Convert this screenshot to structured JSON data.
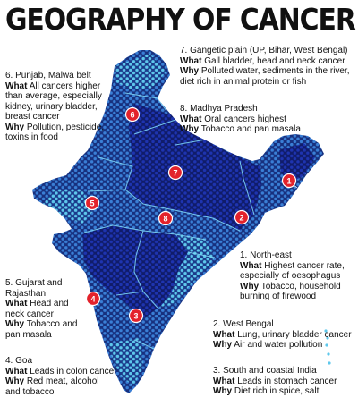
{
  "title": "GEOGRAPHY OF CANCER",
  "colors": {
    "light": "#5ec8ec",
    "mid": "#3a7fd6",
    "dark": "#1b2fa8",
    "marker": "#e3222b",
    "background": "#ffffff"
  },
  "markers": [
    "1",
    "2",
    "3",
    "4",
    "5",
    "6",
    "7",
    "8"
  ],
  "regions": {
    "r1": {
      "label": "1. North-east",
      "what_label": "What",
      "what": "Highest cancer rate, especially of oesophagus",
      "what_lines": [
        "Highest cancer rate,",
        "especially of oesophagus"
      ],
      "why_label": "Why",
      "why": "Tobacco, household burning of firewood",
      "why_lines": [
        "Tobacco, household",
        "burning of firewood"
      ]
    },
    "r2": {
      "label": "2. West Bengal",
      "what_label": "What",
      "what": "Lung, urinary bladder cancer",
      "what_lines": [
        "Lung, urinary bladder cancer"
      ],
      "why_label": "Why",
      "why": "Air and water pollution",
      "why_lines": [
        "Air and water pollution"
      ]
    },
    "r3": {
      "label": "3. South and coastal India",
      "what_label": "What",
      "what": "Leads in stomach cancer",
      "what_lines": [
        "Leads in stomach cancer"
      ],
      "why_label": "Why",
      "why": "Diet rich in spice, salt",
      "why_lines": [
        "Diet rich in spice, salt"
      ]
    },
    "r4": {
      "label": "4. Goa",
      "what_label": "What",
      "what": "Leads in colon cancer",
      "what_lines": [
        "Leads in colon cancer"
      ],
      "why_label": "Why",
      "why": "Red meat, alcohol and tobacco",
      "why_lines": [
        "Red meat, alcohol",
        "and tobacco"
      ]
    },
    "r5": {
      "label": "5. Gujarat and Rajasthan",
      "label_lines": [
        "5. Gujarat and",
        "Rajasthan"
      ],
      "what_label": "What",
      "what": "Head and neck cancer",
      "what_lines": [
        "Head and",
        "neck cancer"
      ],
      "why_label": "Why",
      "why": "Tobacco and pan masala",
      "why_lines": [
        "Tobacco and",
        "pan masala"
      ]
    },
    "r6": {
      "label": "6. Punjab, Malwa belt",
      "what_label": "What",
      "what": "All cancers higher than average, especially kidney, urinary bladder, breast cancer",
      "what_lines": [
        "All cancers higher",
        "than average, especially",
        "kidney, urinary bladder,",
        "breast cancer"
      ],
      "why_label": "Why",
      "why": "Pollution, pesticide, toxins in food",
      "why_lines": [
        "Pollution, pesticide,",
        "toxins in food"
      ]
    },
    "r7": {
      "label": "7. Gangetic plain (UP, Bihar, West Bengal)",
      "what_label": "What",
      "what": "Gall bladder, head and neck cancer",
      "what_lines": [
        "Gall bladder, head and neck cancer"
      ],
      "why_label": "Why",
      "why": "Polluted water, sediments in the river, diet rich in animal protein or fish",
      "why_lines": [
        "Polluted water, sediments in the river,",
        "diet rich in animal protein or fish"
      ]
    },
    "r8": {
      "label": "8. Madhya Pradesh",
      "what_label": "What",
      "what": "Oral cancers highest",
      "what_lines": [
        "Oral cancers highest"
      ],
      "why_label": "Why",
      "why": "Tobacco and pan masala",
      "why_lines": [
        "Tobacco and pan masala"
      ]
    }
  }
}
